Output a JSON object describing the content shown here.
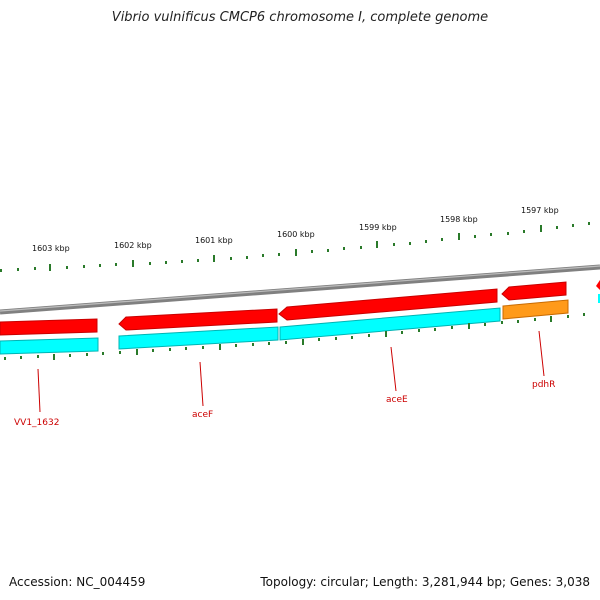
{
  "title": "Vibrio vulnificus CMCP6 chromosome I, complete genome",
  "footer": {
    "accession": "Accession: NC_004459",
    "summary": "Topology: circular; Length: 3,281,944 bp; Genes: 3,038"
  },
  "kbp_labels": [
    "1603 kbp",
    "1602 kbp",
    "1601 kbp",
    "1600 kbp",
    "1599 kbp",
    "1598 kbp",
    "1597 kbp"
  ],
  "genes": [
    {
      "name": "VV1_1632"
    },
    {
      "name": "aceF"
    },
    {
      "name": "aceE"
    },
    {
      "name": "pdhR"
    }
  ],
  "colors": {
    "protein": "#ff0000",
    "protein_dark": "#c80000",
    "regulator": "#ff9a1a",
    "regulator_dark": "#c86a00",
    "cds": "#00ffff",
    "cds_dark": "#00b4b4",
    "backbone": "#808080",
    "ticks": "#2a7a2a",
    "label": "#cc0000"
  }
}
